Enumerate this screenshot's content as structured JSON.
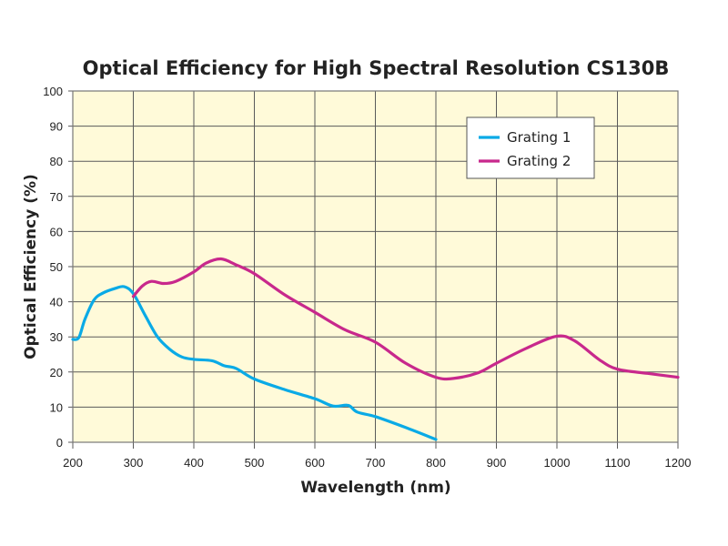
{
  "chart_data": {
    "type": "line",
    "title": "Optical Efficiency for High Spectral Resolution CS130B",
    "xlabel": "Wavelength (nm)",
    "ylabel": "Optical Efficiency (%)",
    "xlim": [
      200,
      1200
    ],
    "ylim": [
      0,
      100
    ],
    "xticks": [
      200,
      300,
      400,
      500,
      600,
      700,
      800,
      900,
      1000,
      1100,
      1200
    ],
    "yticks": [
      0,
      10,
      20,
      30,
      40,
      50,
      60,
      70,
      80,
      90,
      100
    ],
    "grid": true,
    "background": "#fffad9",
    "legend_position": "top-right",
    "series": [
      {
        "name": "Grating 1",
        "color": "#0aaae6",
        "x": [
          200,
          210,
          220,
          235,
          250,
          270,
          285,
          300,
          320,
          340,
          360,
          380,
          400,
          430,
          450,
          470,
          500,
          550,
          600,
          630,
          655,
          670,
          700,
          750,
          800
        ],
        "y": [
          29.3,
          29.8,
          35,
          40.5,
          42.5,
          43.8,
          44.3,
          42.3,
          36,
          30,
          26.5,
          24.3,
          23.6,
          23.2,
          21.8,
          21,
          18,
          15,
          12.4,
          10.3,
          10.5,
          8.6,
          7.3,
          4.2,
          0.8
        ]
      },
      {
        "name": "Grating 2",
        "color": "#c8288c",
        "x": [
          300,
          315,
          330,
          350,
          370,
          400,
          420,
          445,
          470,
          500,
          550,
          600,
          650,
          700,
          750,
          800,
          830,
          870,
          900,
          950,
          1000,
          1030,
          1070,
          1100,
          1150,
          1200
        ],
        "y": [
          41.5,
          44.5,
          45.8,
          45.2,
          45.8,
          48.5,
          51,
          52.2,
          50.5,
          48,
          42,
          37,
          32,
          28.5,
          22.5,
          18.5,
          18.2,
          19.8,
          22.5,
          26.8,
          30.2,
          28.8,
          23.5,
          20.8,
          19.6,
          18.5
        ]
      }
    ]
  }
}
